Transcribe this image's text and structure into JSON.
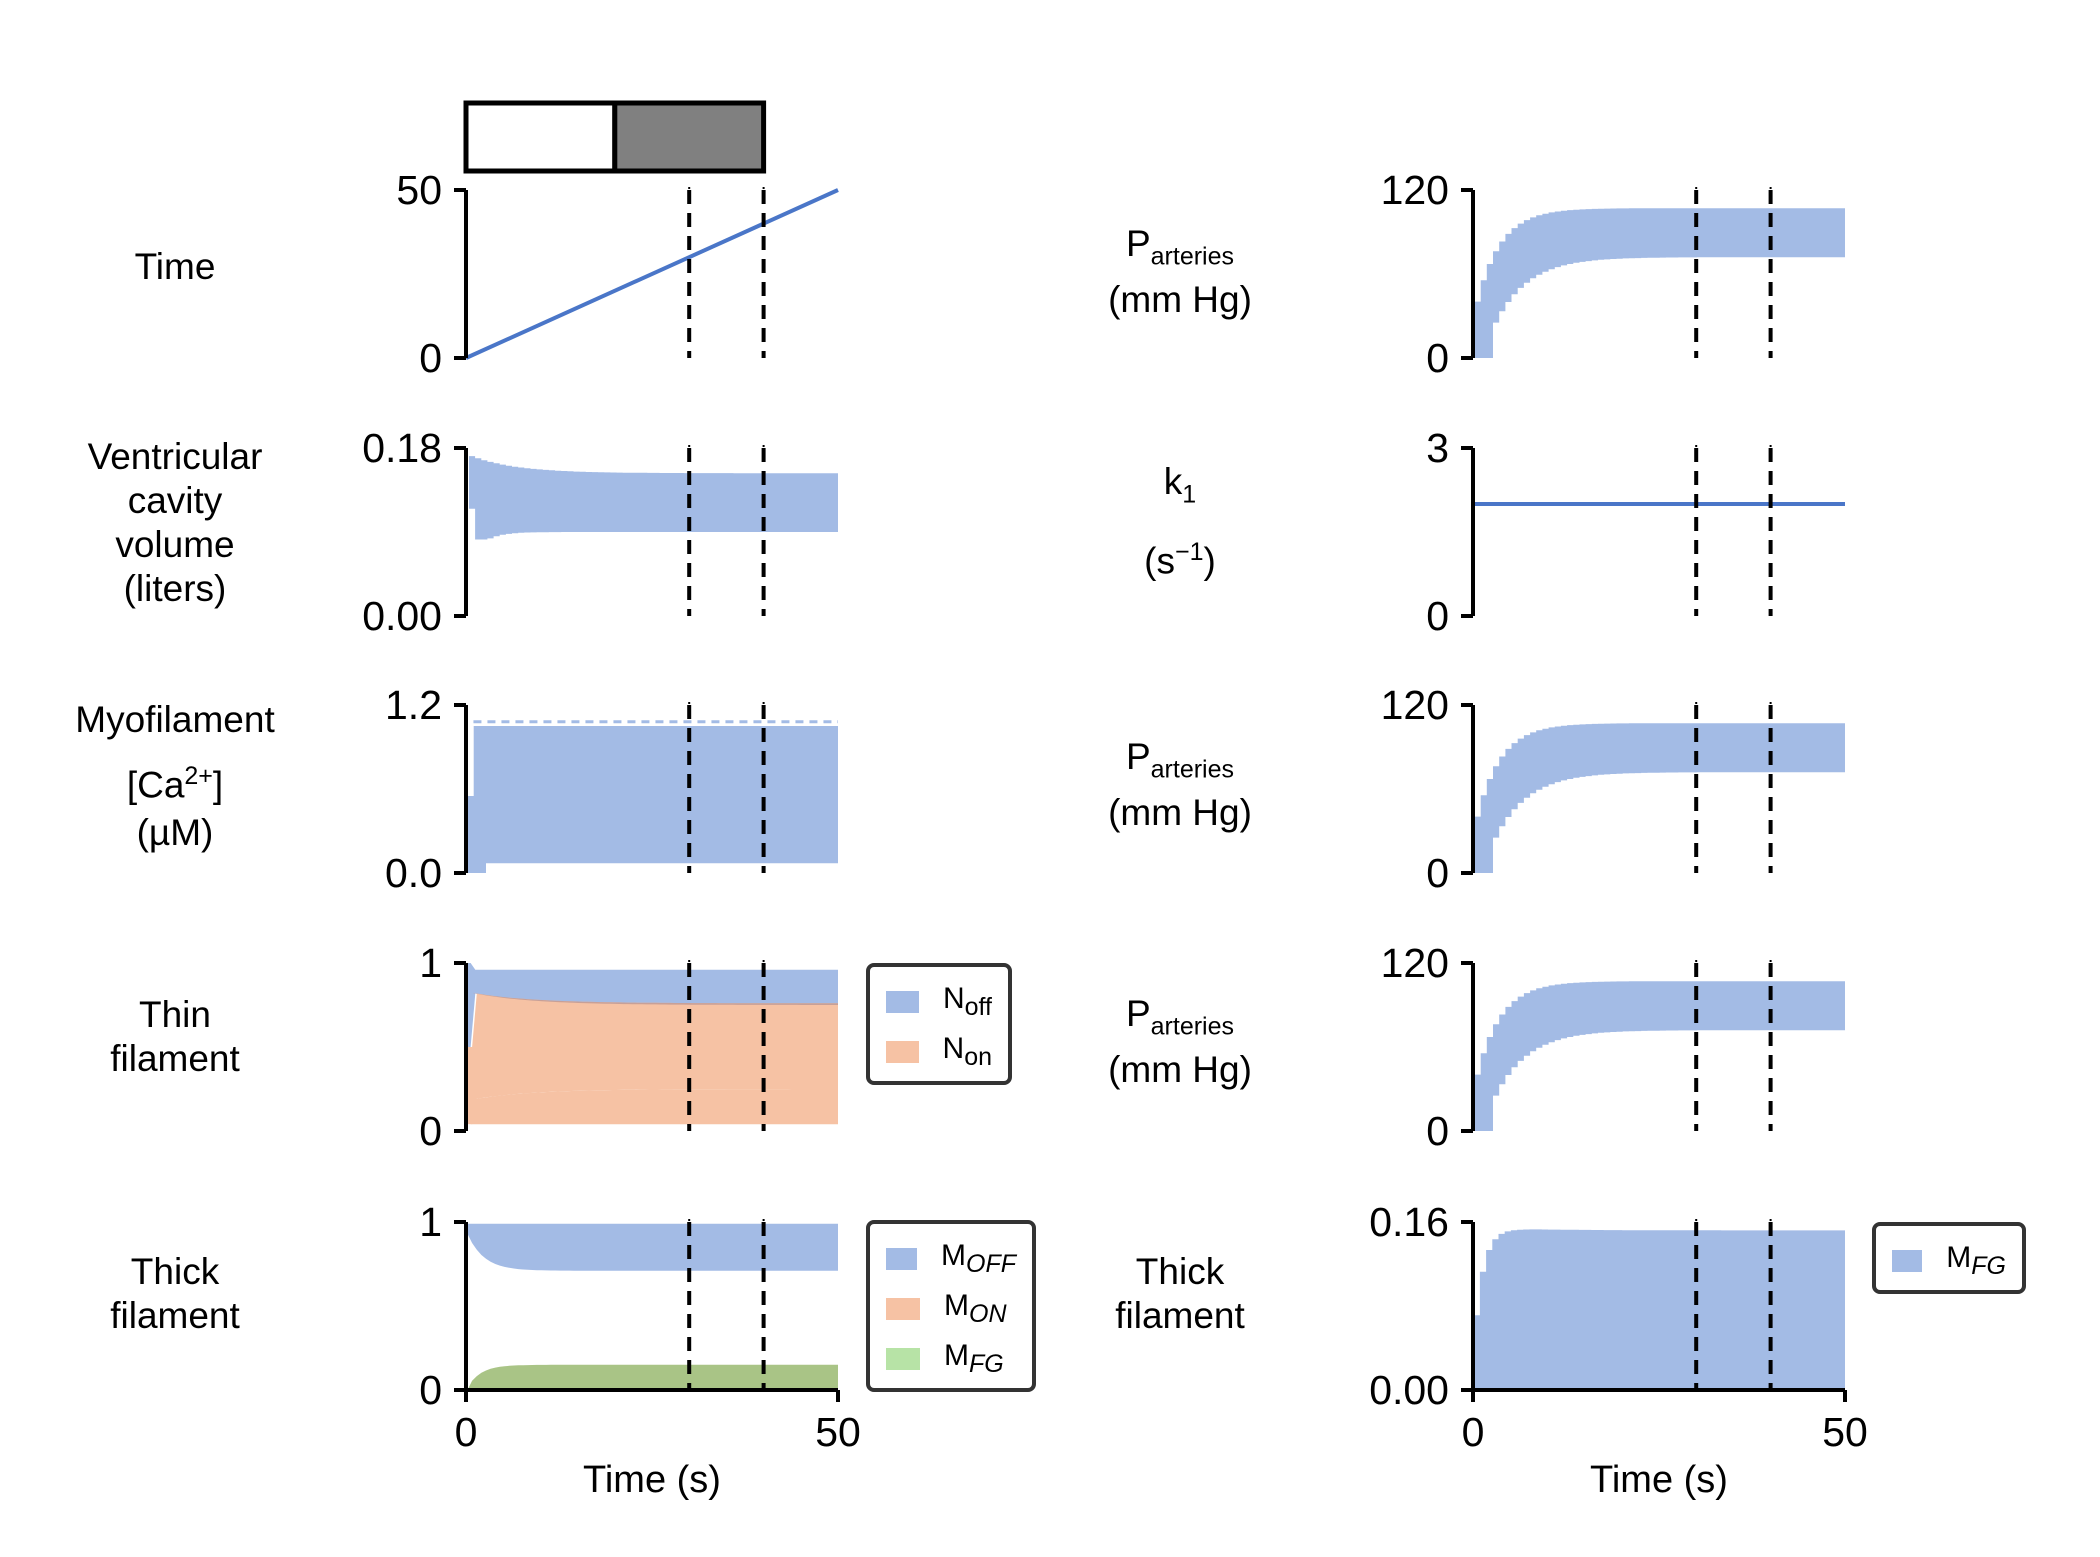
{
  "colors": {
    "blue_fill": "#a3bbe5",
    "blue_line": "#4a76c8",
    "orange_fill": "#f6c2a4",
    "overlap_fill": "#c7a098",
    "green_fill": "#b7e3a6",
    "green_on_orange": "#a9c486",
    "stim_gray": "#808080"
  },
  "row_labels": {
    "time": [
      "Time"
    ],
    "volume": [
      "Ventricular",
      "cavity",
      "volume",
      "(liters)"
    ],
    "calcium": [
      "Myofilament",
      "[Ca",
      "2+",
      "]",
      "(µM)"
    ],
    "thin": [
      "Thin",
      "filament"
    ],
    "thick": [
      "Thick",
      "filament"
    ]
  },
  "right_labels": {
    "p1": {
      "main": "P",
      "sub": "arteries",
      "unit": "(mm Hg)"
    },
    "k1": {
      "main": "k",
      "sub": "1",
      "unit_pre": "(s",
      "unit_sup": "−1",
      "unit_post": ")"
    },
    "p2": {
      "main": "P",
      "sub": "arteries",
      "unit": "(mm Hg)"
    },
    "p3": {
      "main": "P",
      "sub": "arteries",
      "unit": "(mm Hg)"
    },
    "thick": [
      "Thick",
      "filament"
    ]
  },
  "legends": {
    "thin": [
      {
        "main": "N",
        "sub": "off",
        "italic": false,
        "color": "#a3bbe5"
      },
      {
        "main": "N",
        "sub": "on",
        "italic": false,
        "color": "#f6c2a4"
      }
    ],
    "thick_left": [
      {
        "main": "M",
        "sub": "OFF",
        "italic": true,
        "color": "#a3bbe5"
      },
      {
        "main": "M",
        "sub": "ON",
        "italic": true,
        "color": "#f6c2a4"
      },
      {
        "main": "M",
        "sub": "FG",
        "italic": true,
        "color": "#b7e3a6"
      }
    ],
    "thick_right": [
      {
        "main": "M",
        "sub": "FG",
        "italic": true,
        "color": "#a3bbe5"
      }
    ]
  },
  "chart_data": [
    {
      "id": "time",
      "type": "line",
      "x": [
        0,
        50
      ],
      "y": [
        0,
        50
      ],
      "ylim": [
        0,
        50
      ],
      "yticks": [
        "0",
        "50"
      ],
      "xlim": [
        0,
        50
      ],
      "vlines": [
        30,
        40
      ],
      "stim_bar": [
        {
          "x0": 0,
          "x1": 20,
          "fill": "white"
        },
        {
          "x0": 20,
          "x1": 40,
          "fill": "gray"
        }
      ]
    },
    {
      "id": "volume",
      "type": "area",
      "ylim": [
        0,
        0.18
      ],
      "yticks": [
        "0.00",
        "0.18"
      ],
      "xlim": [
        0,
        50
      ],
      "vlines": [
        30,
        40
      ],
      "band": {
        "x0": 0.4,
        "x1": 50,
        "max_start": 0.174,
        "max_end": 0.153,
        "min_start": 0.115,
        "min_dip": 0.082,
        "min_end": 0.09
      }
    },
    {
      "id": "calcium",
      "type": "area",
      "ylim": [
        0,
        1.2
      ],
      "yticks": [
        "0.0",
        "1.2"
      ],
      "xlim": [
        0,
        50
      ],
      "vlines": [
        30,
        40
      ],
      "band": {
        "max": 1.05,
        "min": 0.07,
        "x0": 0.2,
        "x1": 50
      }
    },
    {
      "id": "thin",
      "type": "area",
      "ylim": [
        0,
        1
      ],
      "yticks": [
        "0",
        "1"
      ],
      "xlim": [
        0,
        50
      ],
      "vlines": [
        30,
        40
      ],
      "series": [
        {
          "name": "N_off",
          "max": 0.96,
          "min_start": 0.83,
          "min_end": 0.75
        },
        {
          "name": "N_on",
          "max_start": 0.83,
          "max_end": 0.76,
          "min_start": 0.18,
          "min_end": 0.25,
          "floor": 0.04
        }
      ]
    },
    {
      "id": "thick",
      "type": "area",
      "ylim": [
        0,
        1
      ],
      "yticks": [
        "0",
        "1"
      ],
      "xlim": [
        0,
        50
      ],
      "xticks": [
        "0",
        "50"
      ],
      "xlabel": "Time (s)",
      "vlines": [
        30,
        40
      ],
      "series": [
        {
          "name": "M_OFF",
          "max": 0.99,
          "min_start": 0.95,
          "min_end": 0.71
        },
        {
          "name": "M_ON",
          "max": 0.02,
          "min": 0.0
        },
        {
          "name": "M_FG",
          "max_start": 0.0,
          "max_end": 0.15,
          "min": 0.0
        }
      ]
    },
    {
      "id": "p1",
      "type": "area",
      "ylim": [
        0,
        120
      ],
      "yticks": [
        "0",
        "120"
      ],
      "xlim": [
        0,
        50
      ],
      "vlines": [
        30,
        40
      ],
      "band": {
        "x0": 0.2,
        "x1": 50,
        "max_end": 107,
        "min_end": 72
      }
    },
    {
      "id": "k1",
      "type": "line",
      "x": [
        0,
        50
      ],
      "y": [
        2,
        2
      ],
      "ylim": [
        0,
        3
      ],
      "yticks": [
        "0",
        "3"
      ],
      "xlim": [
        0,
        50
      ],
      "vlines": [
        30,
        40
      ]
    },
    {
      "id": "p2",
      "type": "area",
      "ylim": [
        0,
        120
      ],
      "yticks": [
        "0",
        "120"
      ],
      "xlim": [
        0,
        50
      ],
      "vlines": [
        30,
        40
      ],
      "band": {
        "x0": 0.2,
        "x1": 50,
        "max_end": 107,
        "min_end": 72
      }
    },
    {
      "id": "p3",
      "type": "area",
      "ylim": [
        0,
        120
      ],
      "yticks": [
        "0",
        "120"
      ],
      "xlim": [
        0,
        50
      ],
      "vlines": [
        30,
        40
      ],
      "band": {
        "x0": 0.2,
        "x1": 50,
        "max_end": 107,
        "min_end": 72
      }
    },
    {
      "id": "thick_fg",
      "type": "area",
      "ylim": [
        0,
        0.16
      ],
      "yticks": [
        "0.00",
        "0.16"
      ],
      "xlim": [
        0,
        50
      ],
      "xticks": [
        "0",
        "50"
      ],
      "xlabel": "Time (s)",
      "vlines": [
        30,
        40
      ],
      "series": [
        {
          "name": "M_FG",
          "max_end": 0.152,
          "min": 0.0
        }
      ]
    }
  ]
}
